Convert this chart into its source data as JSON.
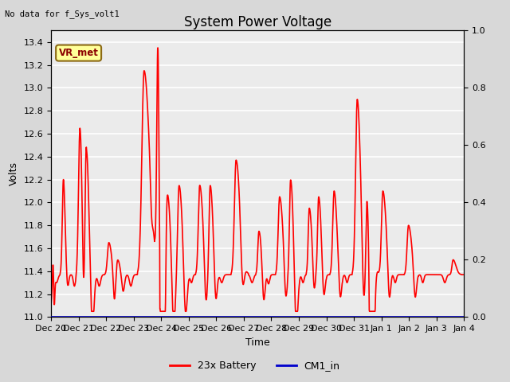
{
  "title": "System Power Voltage",
  "top_left_text": "No data for f_Sys_volt1",
  "ylabel_left": "Volts",
  "xlabel": "Time",
  "ylim_left": [
    11.0,
    13.5
  ],
  "ylim_right": [
    0.0,
    1.0
  ],
  "yticks_left": [
    11.0,
    11.2,
    11.4,
    11.6,
    11.8,
    12.0,
    12.2,
    12.4,
    12.6,
    12.8,
    13.0,
    13.2,
    13.4
  ],
  "yticks_right": [
    0.0,
    0.2,
    0.4,
    0.6,
    0.8,
    1.0
  ],
  "line_color_battery": "#FF0000",
  "line_color_cm1": "#0000CD",
  "line_width": 1.2,
  "legend_battery": "23x Battery",
  "legend_cm1": "CM1_in",
  "annotation_text": "VR_met",
  "annotation_color": "#8B0000",
  "annotation_bg": "#FFFF99",
  "annotation_border": "#8B6914",
  "fig_bg_color": "#D8D8D8",
  "plot_bg": "#EBEBEB",
  "title_fontsize": 12,
  "label_fontsize": 9,
  "tick_fontsize": 8,
  "xtick_labels": [
    "Dec 20",
    "Dec 21",
    "Dec 22",
    "Dec 23",
    "Dec 24",
    "Dec 25",
    "Dec 26",
    "Dec 27",
    "Dec 28",
    "Dec 29",
    "Dec 30",
    "Dec 31",
    "Jan 1",
    "Jan 2",
    "Jan 3",
    "Jan 4"
  ],
  "xtick_positions": [
    0,
    1,
    2,
    3,
    4,
    5,
    6,
    7,
    8,
    9,
    10,
    11,
    12,
    13,
    14,
    15
  ],
  "xlim": [
    0,
    15
  ]
}
